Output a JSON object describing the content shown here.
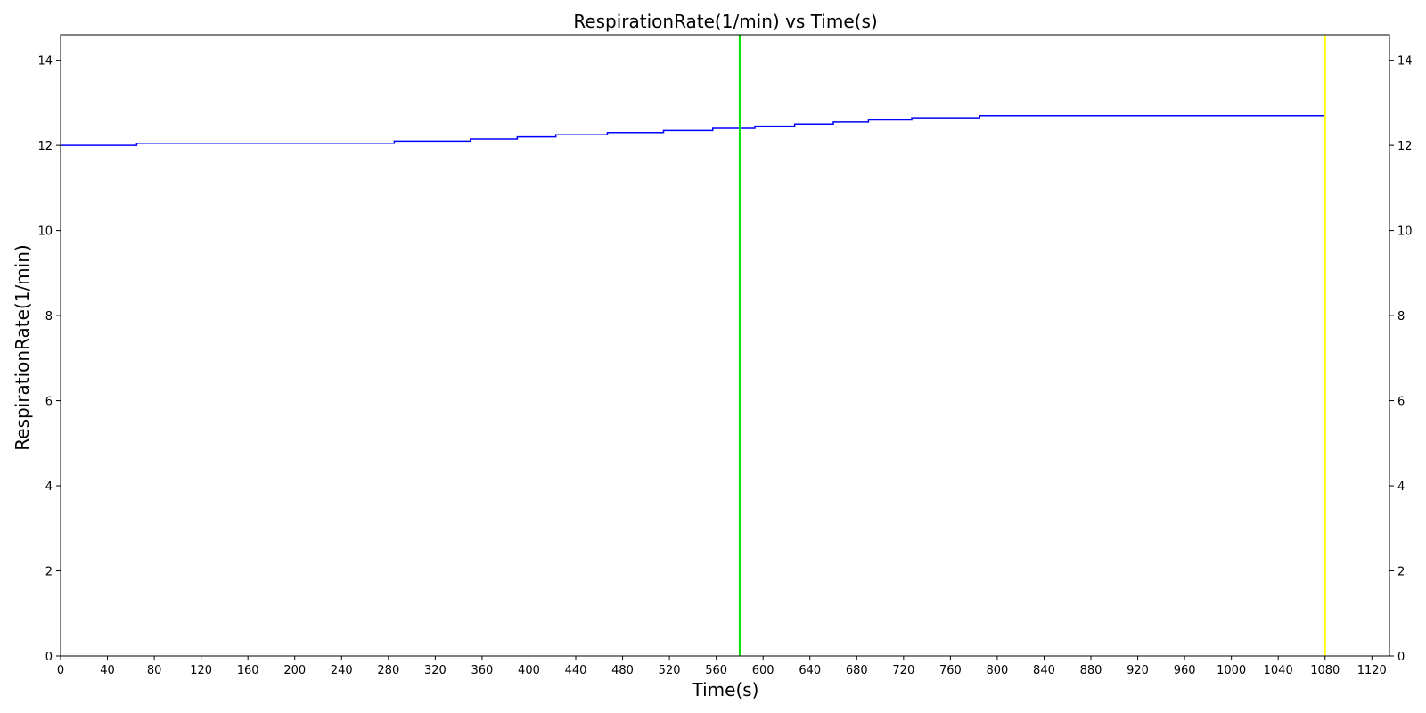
{
  "chart_data": {
    "type": "line",
    "title": "RespirationRate(1/min) vs Time(s)",
    "xlabel": "Time(s)",
    "ylabel": "RespirationRate(1/min)",
    "xlim": [
      0,
      1135
    ],
    "ylim": [
      0,
      14.6
    ],
    "x_ticks": [
      0,
      40,
      80,
      120,
      160,
      200,
      240,
      280,
      320,
      360,
      400,
      440,
      480,
      520,
      560,
      600,
      640,
      680,
      720,
      760,
      800,
      840,
      880,
      920,
      960,
      1000,
      1040,
      1080,
      1120
    ],
    "y_ticks": [
      0,
      2,
      4,
      6,
      8,
      10,
      12,
      14
    ],
    "right_axis_ticks": true,
    "grid": false,
    "legend": "none",
    "series": [
      {
        "color": "#0000ff",
        "step": true,
        "x": [
          0,
          65,
          285,
          350,
          390,
          423,
          467,
          515,
          557,
          593,
          627,
          660,
          690,
          727,
          785,
          1080
        ],
        "y": [
          12.0,
          12.05,
          12.1,
          12.15,
          12.2,
          12.25,
          12.3,
          12.35,
          12.4,
          12.45,
          12.5,
          12.55,
          12.6,
          12.65,
          12.7,
          12.7
        ]
      }
    ],
    "vlines": [
      {
        "x": 580,
        "color": "#00dd00"
      },
      {
        "x": 1080,
        "color": "#ffff00"
      }
    ]
  }
}
